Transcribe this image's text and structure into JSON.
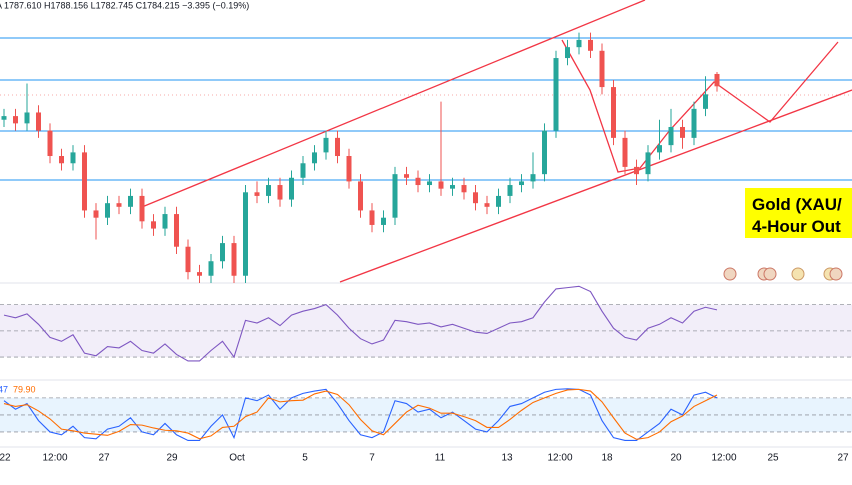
{
  "chart_data": [
    {
      "type": "candlestick",
      "subtitle": "A 1787.610 H1788.156 L1782.745 C1784.215 −3.395 (−0.19%)",
      "annotation": [
        "Gold (XAU/",
        "4-Hour Out"
      ],
      "x_labels": [
        "22",
        "12:00",
        "27",
        "29",
        "Oct",
        "5",
        "7",
        "11",
        "13",
        "12:00",
        "18",
        "20",
        "12:00",
        "25",
        "27"
      ],
      "ylim": [
        1730,
        1808
      ],
      "up_color": "#26a69a",
      "down_color": "#ef5350",
      "candles": [
        [
          1775,
          1778,
          1773,
          1776
        ],
        [
          1776,
          1778,
          1772,
          1774
        ],
        [
          1774,
          1785,
          1772,
          1777
        ],
        [
          1777,
          1779,
          1770,
          1772
        ],
        [
          1772,
          1774,
          1763,
          1765
        ],
        [
          1765,
          1767,
          1761,
          1763
        ],
        [
          1763,
          1768,
          1761,
          1766
        ],
        [
          1766,
          1768,
          1748,
          1750
        ],
        [
          1750,
          1752,
          1742,
          1748
        ],
        [
          1748,
          1754,
          1746,
          1752
        ],
        [
          1752,
          1754,
          1749,
          1751
        ],
        [
          1751,
          1756,
          1749,
          1754
        ],
        [
          1754,
          1756,
          1745,
          1747
        ],
        [
          1747,
          1749,
          1743,
          1745
        ],
        [
          1745,
          1751,
          1743,
          1749
        ],
        [
          1749,
          1751,
          1738,
          1740
        ],
        [
          1740,
          1742,
          1731,
          1733
        ],
        [
          1733,
          1735,
          1730,
          1732
        ],
        [
          1732,
          1738,
          1730,
          1736
        ],
        [
          1736,
          1743,
          1734,
          1741
        ],
        [
          1741,
          1743,
          1730,
          1732
        ],
        [
          1732,
          1757,
          1730,
          1755
        ],
        [
          1755,
          1758,
          1752,
          1754
        ],
        [
          1754,
          1759,
          1752,
          1757
        ],
        [
          1757,
          1759,
          1751,
          1753
        ],
        [
          1753,
          1761,
          1751,
          1759
        ],
        [
          1759,
          1765,
          1757,
          1763
        ],
        [
          1763,
          1768,
          1761,
          1766
        ],
        [
          1766,
          1772,
          1764,
          1770
        ],
        [
          1770,
          1772,
          1763,
          1765
        ],
        [
          1765,
          1767,
          1756,
          1758
        ],
        [
          1758,
          1760,
          1748,
          1750
        ],
        [
          1750,
          1752,
          1744,
          1746
        ],
        [
          1746,
          1750,
          1744,
          1748
        ],
        [
          1748,
          1762,
          1746,
          1760
        ],
        [
          1760,
          1762,
          1757,
          1759
        ],
        [
          1759,
          1761,
          1755,
          1757
        ],
        [
          1757,
          1760,
          1755,
          1758
        ],
        [
          1758,
          1780,
          1754,
          1756
        ],
        [
          1756,
          1759,
          1754,
          1757
        ],
        [
          1757,
          1759,
          1753,
          1755
        ],
        [
          1755,
          1757,
          1750,
          1752
        ],
        [
          1752,
          1754,
          1749,
          1751
        ],
        [
          1751,
          1756,
          1749,
          1754
        ],
        [
          1754,
          1759,
          1752,
          1757
        ],
        [
          1757,
          1760,
          1755,
          1758
        ],
        [
          1758,
          1766,
          1756,
          1760
        ],
        [
          1760,
          1774,
          1758,
          1772
        ],
        [
          1772,
          1794,
          1770,
          1792
        ],
        [
          1792,
          1797,
          1790,
          1795
        ],
        [
          1795,
          1799,
          1793,
          1797
        ],
        [
          1797,
          1799,
          1792,
          1794
        ],
        [
          1794,
          1796,
          1782,
          1784
        ],
        [
          1784,
          1786,
          1768,
          1770
        ],
        [
          1770,
          1772,
          1760,
          1762
        ],
        [
          1762,
          1764,
          1757,
          1760
        ],
        [
          1760,
          1768,
          1758,
          1766
        ],
        [
          1766,
          1775,
          1764,
          1768
        ],
        [
          1768,
          1778,
          1766,
          1773
        ],
        [
          1773,
          1775,
          1767,
          1770
        ],
        [
          1770,
          1780,
          1768,
          1778
        ],
        [
          1778,
          1787,
          1776,
          1782
        ],
        [
          1787.61,
          1788.156,
          1782.745,
          1784.215
        ]
      ]
    },
    {
      "type": "line",
      "ylim": [
        14,
        85
      ],
      "levels": [
        70,
        50,
        30
      ],
      "series": [
        {
          "color": "#7e57c2",
          "values": [
            62,
            60,
            63,
            55,
            45,
            42,
            47,
            33,
            31,
            38,
            37,
            42,
            35,
            33,
            40,
            32,
            27,
            27,
            35,
            42,
            30,
            58,
            56,
            60,
            54,
            62,
            65,
            67,
            70,
            62,
            52,
            44,
            40,
            43,
            58,
            57,
            55,
            56,
            53,
            55,
            52,
            49,
            48,
            52,
            56,
            57,
            60,
            72,
            82,
            83,
            84,
            80,
            65,
            52,
            45,
            43,
            52,
            55,
            60,
            56,
            65,
            68,
            66
          ]
        }
      ]
    },
    {
      "type": "line",
      "ylim": [
        -3,
        108
      ],
      "levels": [
        80,
        50,
        20
      ],
      "value_labels": [
        "47",
        "79.90"
      ],
      "series": [
        {
          "color": "#2962ff",
          "values": [
            75,
            60,
            70,
            40,
            20,
            15,
            30,
            10,
            8,
            25,
            30,
            45,
            20,
            15,
            35,
            15,
            5,
            5,
            30,
            50,
            10,
            80,
            75,
            85,
            60,
            80,
            88,
            92,
            95,
            70,
            40,
            15,
            10,
            20,
            75,
            70,
            55,
            60,
            45,
            55,
            40,
            25,
            20,
            40,
            65,
            70,
            80,
            90,
            95,
            96,
            95,
            85,
            40,
            10,
            5,
            5,
            20,
            35,
            60,
            50,
            85,
            90,
            80
          ]
        },
        {
          "color": "#ff6d00",
          "values": [
            70,
            65,
            68,
            57,
            43,
            25,
            22,
            18,
            16,
            14,
            21,
            33,
            32,
            27,
            23,
            22,
            18,
            8,
            13,
            28,
            30,
            47,
            55,
            80,
            73,
            75,
            76,
            87,
            92,
            86,
            68,
            42,
            22,
            15,
            35,
            55,
            67,
            62,
            53,
            53,
            47,
            40,
            28,
            28,
            42,
            58,
            72,
            80,
            88,
            94,
            95,
            92,
            73,
            45,
            18,
            7,
            10,
            20,
            38,
            48,
            65,
            75,
            85
          ]
        }
      ]
    }
  ]
}
